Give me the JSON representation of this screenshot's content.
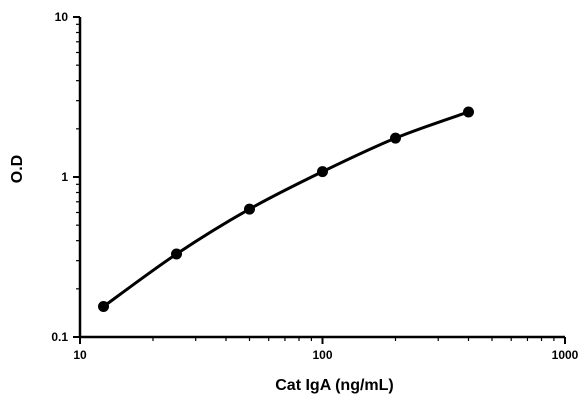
{
  "chart_data": {
    "type": "line",
    "title": "",
    "xlabel": "Cat IgA  (ng/mL)",
    "ylabel": "O.D",
    "x_scale": "log",
    "y_scale": "log",
    "xlim": [
      10,
      1000
    ],
    "ylim": [
      0.1,
      10
    ],
    "x_ticks": [
      10,
      100,
      1000
    ],
    "x_tick_labels": [
      "10",
      "100",
      "1000"
    ],
    "y_ticks": [
      0.1,
      1,
      10
    ],
    "y_tick_labels": [
      "0.1",
      "1",
      "10"
    ],
    "grid": false,
    "legend": "none",
    "series": [
      {
        "x": [
          12.5,
          25,
          50,
          100,
          200,
          400
        ],
        "y": [
          0.155,
          0.33,
          0.63,
          1.08,
          1.75,
          2.55
        ],
        "marker": "circle",
        "color": "#000000"
      }
    ]
  }
}
